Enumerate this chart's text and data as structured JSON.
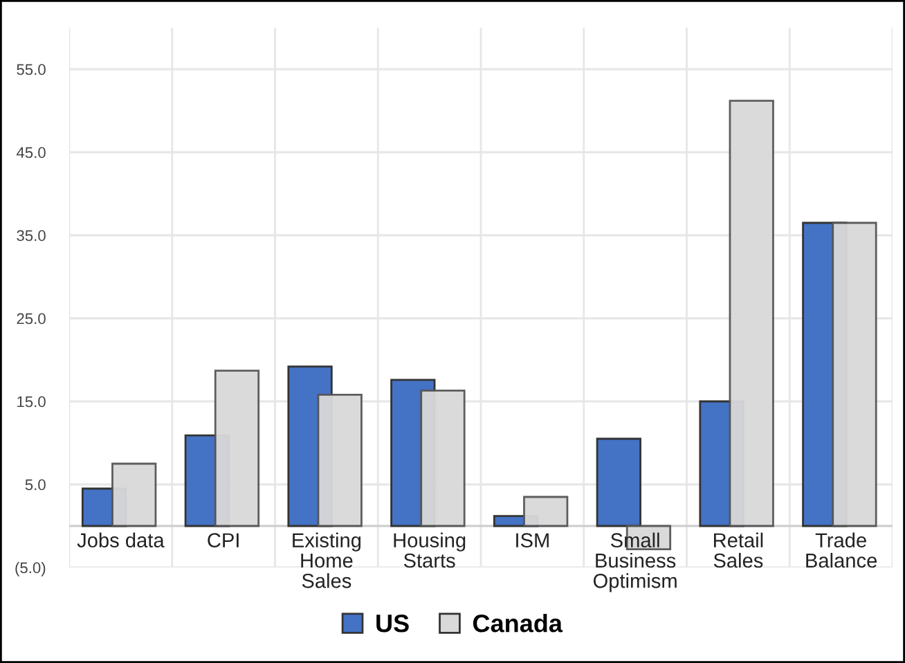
{
  "chart_data": {
    "type": "bar",
    "categories": [
      "Jobs data",
      "CPI",
      "Existing\nHome\nSales",
      "Housing\nStarts",
      "ISM",
      "Small\nBusiness\nOptimism",
      "Retail\nSales",
      "Trade\nBalance"
    ],
    "series": [
      {
        "name": "US",
        "color": "#4472c4",
        "values": [
          4.5,
          10.9,
          19.2,
          17.6,
          1.2,
          10.5,
          15.0,
          36.5
        ]
      },
      {
        "name": "Canada",
        "color": "#d9d9d9",
        "values": [
          7.5,
          18.7,
          15.8,
          16.3,
          3.5,
          -2.8,
          51.2,
          36.5
        ]
      }
    ],
    "ylim": [
      -5,
      60
    ],
    "yticks": [
      {
        "value": -5,
        "label": "(5.0)"
      },
      {
        "value": 5,
        "label": "5.0"
      },
      {
        "value": 15,
        "label": "15.0"
      },
      {
        "value": 25,
        "label": "25.0"
      },
      {
        "value": 35,
        "label": "35.0"
      },
      {
        "value": 45,
        "label": "45.0"
      },
      {
        "value": 55,
        "label": "55.0"
      }
    ],
    "grid": true,
    "legend": "bottom"
  }
}
